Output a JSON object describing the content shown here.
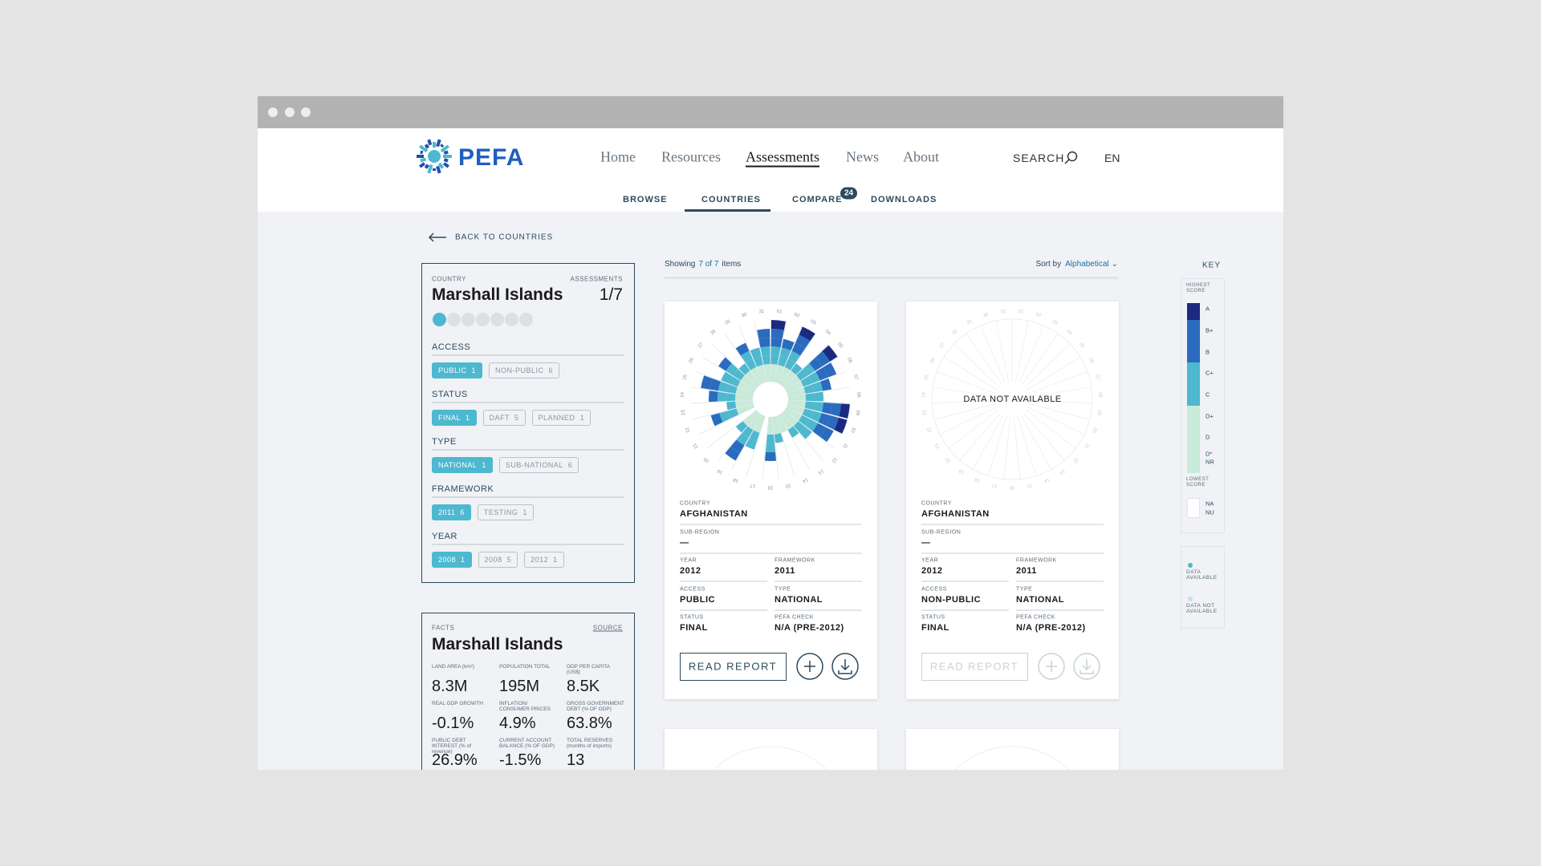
{
  "header": {
    "logo": "PEFA",
    "nav": [
      {
        "label": "Home",
        "active": false
      },
      {
        "label": "Resources",
        "active": false
      },
      {
        "label": "Assessments",
        "active": true
      },
      {
        "label": "News",
        "active": false
      },
      {
        "label": "About",
        "active": false
      }
    ],
    "search": "SEARCH",
    "lang": "EN"
  },
  "subnav": {
    "items": [
      {
        "label": "BROWSE",
        "active": false
      },
      {
        "label": "COUNTRIES",
        "active": true
      },
      {
        "label": "COMPARE",
        "active": false,
        "badge": 24
      },
      {
        "label": "DOWNLOADS",
        "active": false
      }
    ]
  },
  "back": "BACK TO COUNTRIES",
  "filters": {
    "country_label": "COUNTRY",
    "country": "Marshall Islands",
    "assessments_label": "ASSESSMENTS",
    "assessments": "1/7",
    "sections": [
      {
        "title": "ACCESS",
        "chips": [
          {
            "label": "PUBLIC",
            "count": 1,
            "active": true
          },
          {
            "label": "NON-PUBLIC",
            "count": 6,
            "active": false
          }
        ]
      },
      {
        "title": "STATUS",
        "chips": [
          {
            "label": "FINAL",
            "count": 1,
            "active": true
          },
          {
            "label": "DAFT",
            "count": 5,
            "active": false
          },
          {
            "label": "PLANNED",
            "count": 1,
            "active": false
          }
        ]
      },
      {
        "title": "TYPE",
        "chips": [
          {
            "label": "NATIONAL",
            "count": 1,
            "active": true
          },
          {
            "label": "SUB-NATIONAL",
            "count": 6,
            "active": false
          }
        ]
      },
      {
        "title": "FRAMEWORK",
        "chips": [
          {
            "label": "2011",
            "count": 6,
            "active": true
          },
          {
            "label": "TESTING",
            "count": 1,
            "active": false
          }
        ]
      },
      {
        "title": "YEAR",
        "chips": [
          {
            "label": "2008",
            "count": 1,
            "active": true
          },
          {
            "label": "2008",
            "count": 5,
            "active": false
          },
          {
            "label": "2012",
            "count": 1,
            "active": false
          }
        ]
      }
    ]
  },
  "facts": {
    "label": "FACTS",
    "source": "SOURCE",
    "country": "Marshall Islands",
    "items": [
      {
        "label": "LAND AREA (km²)",
        "value": "8.3M"
      },
      {
        "label": "POPULATION TOTAL",
        "value": "195M"
      },
      {
        "label": "GDP PER CAPITA (US$)",
        "value": "8.5K"
      },
      {
        "label": "REAL GDP GROWTH",
        "value": "-0.1%"
      },
      {
        "label": "INFLATION/ CONSUMER PRICES",
        "value": "4.9%"
      },
      {
        "label": "GROSS GOVERNMENT DEBT (% OF GDP)",
        "value": "63.8%"
      },
      {
        "label": "PUBLIC DEBT INTEREST (% of revenue)",
        "value": "26.9%"
      },
      {
        "label": "CURRENT ACCOUNT BALANCE (% OF GDP)",
        "value": "-1.5%"
      },
      {
        "label": "TOTAL RESERVES (months of imports)",
        "value": "13"
      }
    ]
  },
  "results": {
    "showing": "Showing",
    "count": "7 of 7",
    "items": "items",
    "sort_label": "Sort by",
    "sort_value": "Alphabetical",
    "cards": [
      {
        "radial": {
          "spoke_labels": [
            "01",
            "02",
            "03",
            "04",
            "05",
            "06",
            "07",
            "08",
            "09",
            "10",
            "11",
            "12",
            "13",
            "14",
            "15",
            "16",
            "17",
            "18",
            "19",
            "20",
            "21",
            "22",
            "23",
            "24",
            "25",
            "26",
            "27",
            "28",
            "29",
            "30",
            "31"
          ],
          "scores": [
            7,
            5,
            7,
            3,
            7,
            6,
            5,
            4,
            7,
            7,
            6,
            4,
            3,
            2,
            3,
            5,
            0,
            4,
            6,
            3,
            0,
            5,
            3,
            5,
            6,
            4,
            5,
            3,
            5,
            4,
            6
          ]
        },
        "fields": [
          {
            "label": "COUNTRY",
            "value": "AFGHANISTAN"
          },
          {
            "label": "SUB-REGION",
            "value": "—"
          },
          {
            "label": "YEAR",
            "value": "2012"
          },
          {
            "label": "FRAMEWORK",
            "value": "2011"
          },
          {
            "label": "ACCESS",
            "value": "PUBLIC"
          },
          {
            "label": "TYPE",
            "value": "NATIONAL"
          },
          {
            "label": "STATUS",
            "value": "FINAL"
          },
          {
            "label": "PEFA CHECK",
            "value": "N/A (PRE-2012)"
          }
        ],
        "button": "READ REPORT",
        "enabled": true
      },
      {
        "radial": {
          "spoke_labels": [
            "01",
            "02",
            "03",
            "04",
            "05",
            "06",
            "07",
            "08",
            "09",
            "10",
            "11",
            "12",
            "13",
            "14",
            "15",
            "16",
            "17",
            "18",
            "19",
            "20",
            "21",
            "22",
            "23",
            "24",
            "25",
            "26",
            "27",
            "28",
            "29",
            "30",
            "31"
          ]
        },
        "message": "DATA NOT AVAILABLE",
        "fields": [
          {
            "label": "COUNTRY",
            "value": "AFGHANISTAN"
          },
          {
            "label": "SUB-REGION",
            "value": "—"
          },
          {
            "label": "YEAR",
            "value": "2012"
          },
          {
            "label": "FRAMEWORK",
            "value": "2011"
          },
          {
            "label": "ACCESS",
            "value": "NON-PUBLIC"
          },
          {
            "label": "TYPE",
            "value": "NATIONAL"
          },
          {
            "label": "STATUS",
            "value": "FINAL"
          },
          {
            "label": "PEFA CHECK",
            "value": "N/A (PRE-2012)"
          }
        ],
        "button": "READ REPORT",
        "enabled": false
      }
    ]
  },
  "key": {
    "title": "KEY",
    "highest": "HIGHEST SCORE",
    "lowest": "LOWEST SCORE",
    "grades": [
      {
        "label": "A",
        "color": "#1b2a80"
      },
      {
        "label": "B+",
        "color": "#2a6bbf"
      },
      {
        "label": "B",
        "color": "#2a6bbf"
      },
      {
        "label": "C+",
        "color": "#4db8cf"
      },
      {
        "label": "C",
        "color": "#4db8cf"
      },
      {
        "label": "D+",
        "color": "#c8ead8"
      },
      {
        "label": "D",
        "color": "#c8ead8"
      },
      {
        "label": "D*",
        "color": "#c8ead8"
      },
      {
        "label": "NR",
        "color": "#c8ead8"
      }
    ],
    "na": [
      "NA",
      "NU"
    ],
    "legend": [
      {
        "label": "DATA AVAILABLE",
        "color": "#4db8cf"
      },
      {
        "label": "DATA NOT AVAILABLE",
        "color": "#c5e0ee"
      }
    ]
  }
}
